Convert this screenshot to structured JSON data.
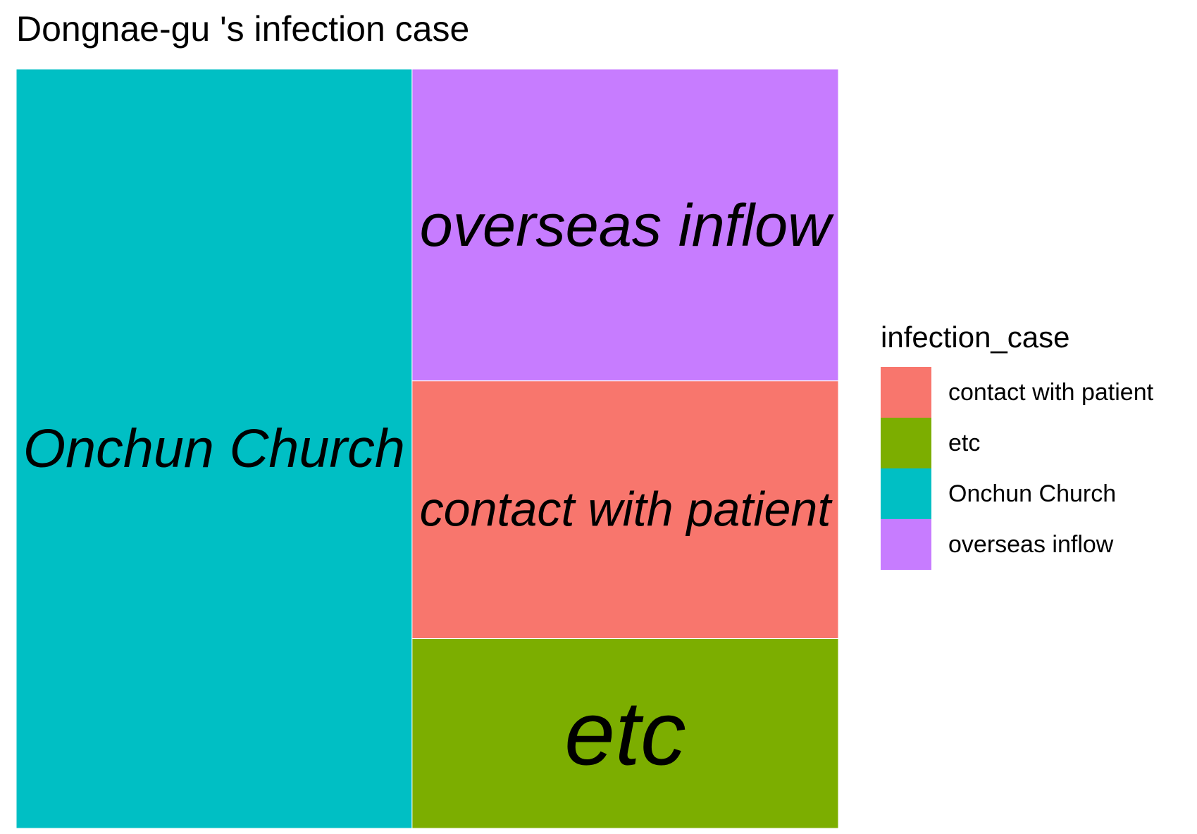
{
  "chart_data": {
    "type": "treemap",
    "title": "Dongnae-gu 's infection case",
    "legend_title": "infection_case",
    "legend_position": "right",
    "categories": [
      "contact with patient",
      "etc",
      "Onchun Church",
      "overseas inflow"
    ],
    "values": [
      19,
      14,
      52,
      23
    ],
    "colors": {
      "contact with patient": "#F8766D",
      "etc": "#7CAE00",
      "Onchun Church": "#00BFC4",
      "overseas inflow": "#C77CFF"
    }
  }
}
